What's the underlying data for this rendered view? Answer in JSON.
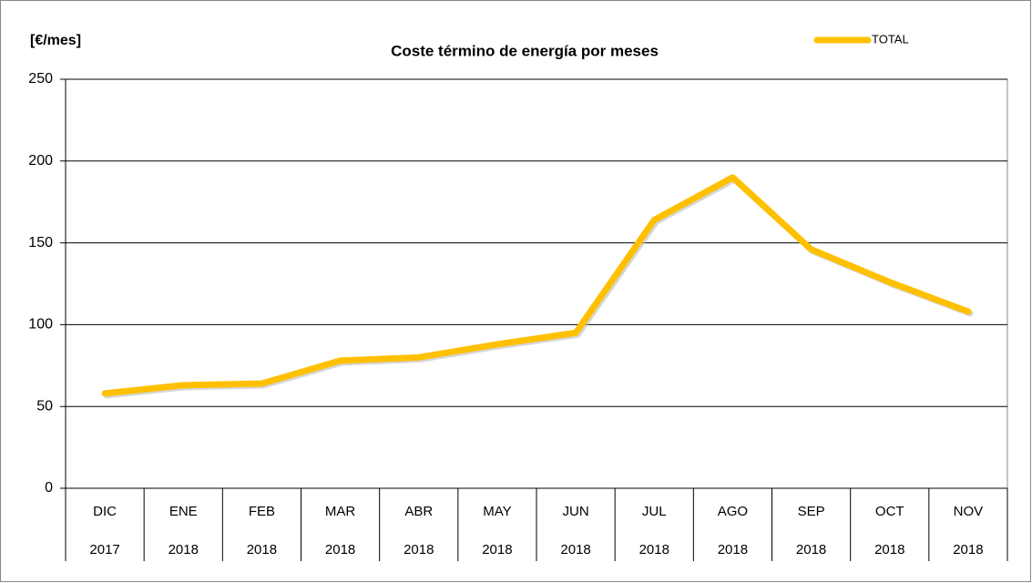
{
  "chart_data": {
    "type": "line",
    "title": "Coste término de energía por meses",
    "y_label": "[€/mes]",
    "categories": [
      [
        "DIC",
        "2017"
      ],
      [
        "ENE",
        "2018"
      ],
      [
        "FEB",
        "2018"
      ],
      [
        "MAR",
        "2018"
      ],
      [
        "ABR",
        "2018"
      ],
      [
        "MAY",
        "2018"
      ],
      [
        "JUN",
        "2018"
      ],
      [
        "JUL",
        "2018"
      ],
      [
        "AGO",
        "2018"
      ],
      [
        "SEP",
        "2018"
      ],
      [
        "OCT",
        "2018"
      ],
      [
        "NOV",
        "2018"
      ]
    ],
    "series": [
      {
        "name": "TOTAL",
        "color": "#ffc000",
        "values": [
          58,
          63,
          64,
          78,
          80,
          88,
          95,
          164,
          190,
          146,
          126,
          108
        ]
      }
    ],
    "ylim": [
      0,
      250
    ],
    "yticks": [
      0,
      50,
      100,
      150,
      200,
      250
    ],
    "grid": true,
    "legend": "top-right"
  }
}
